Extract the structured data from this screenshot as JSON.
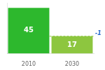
{
  "chart_data": {
    "type": "bar",
    "categories": [
      "2010",
      "2030"
    ],
    "values": [
      45,
      17
    ],
    "colors": [
      "#2db82d",
      "#8dc63f"
    ],
    "ylim": [
      0,
      50
    ],
    "grid": false,
    "tick_labels": "x",
    "data_labels": true,
    "annotations": [
      {
        "text": "-1",
        "y": 17,
        "color": "#2266cc",
        "line_color": "#8dc63f",
        "line_style": "dashed"
      }
    ]
  }
}
